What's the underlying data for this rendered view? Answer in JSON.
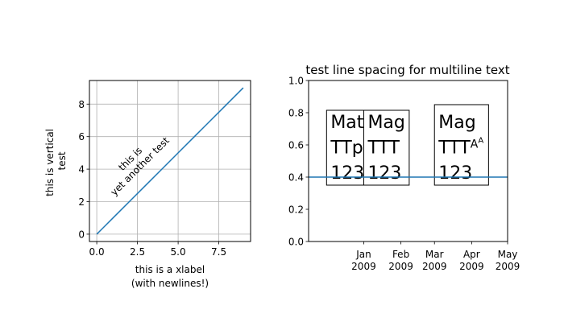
{
  "chart_data": [
    {
      "type": "line",
      "xlabel_lines": [
        "this is a xlabel",
        "(with newlines!)"
      ],
      "ylabel_lines": [
        "this is vertical",
        "test"
      ],
      "annotation_lines": [
        "this is",
        "yet another test"
      ],
      "xlim": [
        -0.45,
        9.45
      ],
      "ylim": [
        -0.45,
        9.45
      ],
      "xticks": [
        0.0,
        2.5,
        5.0,
        7.5
      ],
      "xtick_labels": [
        "0.0",
        "2.5",
        "5.0",
        "7.5"
      ],
      "yticks": [
        0,
        2,
        4,
        6,
        8
      ],
      "ytick_labels": [
        "0",
        "2",
        "4",
        "6",
        "8"
      ],
      "grid": true,
      "series": [
        {
          "x": [
            0,
            1,
            2,
            3,
            4,
            5,
            6,
            7,
            8,
            9
          ],
          "y": [
            0,
            1,
            2,
            3,
            4,
            5,
            6,
            7,
            8,
            9
          ],
          "color": "#1f77b4"
        }
      ]
    },
    {
      "type": "line",
      "title": "test line spacing for multiline text",
      "ylim": [
        0.0,
        1.0
      ],
      "yticks": [
        0.0,
        0.2,
        0.4,
        0.6,
        0.8,
        1.0
      ],
      "ytick_labels": [
        "0.0",
        "0.2",
        "0.4",
        "0.6",
        "0.8",
        "1.0"
      ],
      "xlim": [
        "2008-11-16",
        "2009-05-01"
      ],
      "xticks": [
        "2009-01-01",
        "2009-02-01",
        "2009-03-01",
        "2009-04-01",
        "2009-05-01"
      ],
      "xtick_labels": [
        [
          "Jan",
          "2009"
        ],
        [
          "Feb",
          "2009"
        ],
        [
          "Mar",
          "2009"
        ],
        [
          "Apr",
          "2009"
        ],
        [
          "May",
          "2009"
        ]
      ],
      "grid": false,
      "series": [
        {
          "x": [
            "2008-11-16",
            "2009-05-01"
          ],
          "y": [
            0.4,
            0.4
          ],
          "color": "#1f77b4"
        }
      ],
      "text_boxes": [
        {
          "x": "2008-12-01",
          "y": 0.35,
          "lines": [
            "Mat",
            "TTp",
            "123"
          ]
        },
        {
          "x": "2009-01-01",
          "y": 0.35,
          "lines": [
            "Mag",
            "TTT",
            "123"
          ]
        },
        {
          "x": "2009-03-01",
          "y": 0.35,
          "lines": [
            "Mag",
            "TTT",
            "123"
          ],
          "superscript": "A",
          "superscript_exponent": "A"
        }
      ]
    }
  ]
}
